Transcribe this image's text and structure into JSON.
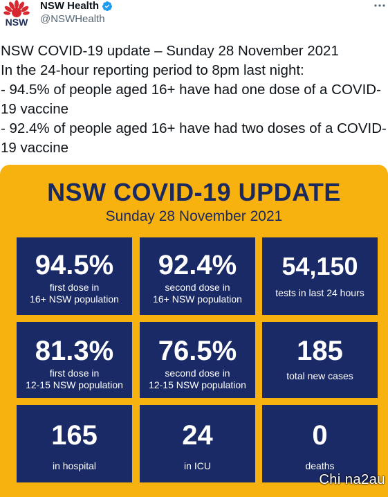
{
  "tweet": {
    "display_name": "NSW Health",
    "handle": "@NSWHealth",
    "avatar_text": "NSW",
    "verified_icon": "verified-badge-icon",
    "more_icon": "more-options-icon",
    "text": "NSW COVID-19 update – Sunday 28 November 2021\nIn the 24-hour reporting period to 8pm last night:\n- 94.5% of people aged 16+ have had one dose of a COVID-19 vaccine\n- 92.4% of people aged 16+ have had two doses of a COVID-19 vaccine"
  },
  "graphic": {
    "title": "NSW COVID-19 UPDATE",
    "date": "Sunday 28 November 2021",
    "stats": [
      {
        "value": "94.5%",
        "label_line1": "first dose in",
        "label_line2": "16+ NSW population"
      },
      {
        "value": "92.4%",
        "label_line1": "second dose in",
        "label_line2": "16+ NSW population"
      },
      {
        "value": "54,150",
        "label_line1": "tests in last 24 hours",
        "label_line2": ""
      },
      {
        "value": "81.3%",
        "label_line1": "first dose in",
        "label_line2": "12-15 NSW population"
      },
      {
        "value": "76.5%",
        "label_line1": "second dose in",
        "label_line2": "12-15 NSW population"
      },
      {
        "value": "185",
        "label_line1": "total new cases",
        "label_line2": ""
      },
      {
        "value": "165",
        "label_line1": "in hospital",
        "label_line2": ""
      },
      {
        "value": "24",
        "label_line1": "in ICU",
        "label_line2": ""
      },
      {
        "value": "0",
        "label_line1": "deaths",
        "label_line2": ""
      }
    ]
  },
  "watermark": "Chi na2au",
  "colors": {
    "panel_background": "#f7b20f",
    "card_background": "#1a2a66",
    "title_color": "#1b2a5e",
    "verified_blue": "#1d9bf0",
    "waratah_red": "#d7282f"
  }
}
